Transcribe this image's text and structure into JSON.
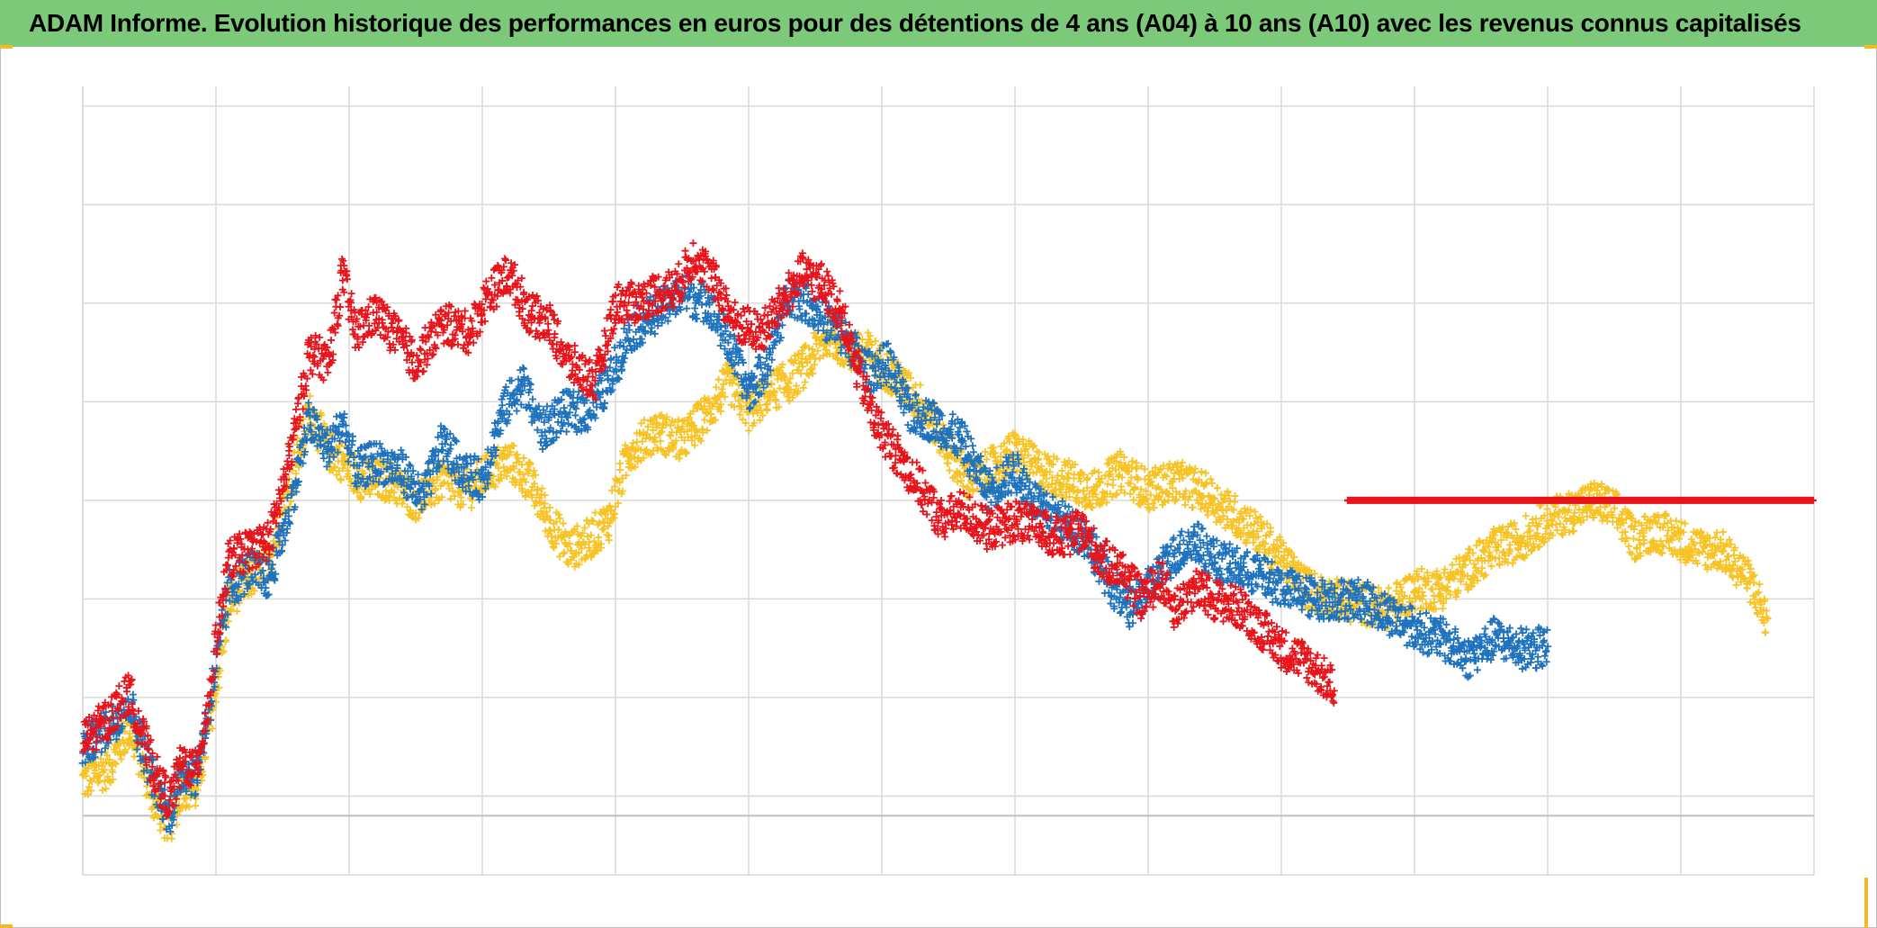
{
  "title": "ADAM Informe. Evolution historique des performances en euros pour des détentions de 4 ans (A04) à 10 ans (A10) avec les revenus connus capitalisés",
  "colors": {
    "header_bg": "#7dc97a",
    "grid": "#d9d9d9",
    "baseline": "#bfbfbf",
    "red": "#e8141b",
    "blue": "#1f73be",
    "yellow": "#f7c325"
  },
  "chart_data": {
    "type": "scatter",
    "title": "ADAM Informe. Evolution historique des performances en euros pour des détentions de 4 ans (A04) à 10 ans (A10) avec les revenus connus capitalisés",
    "xlabel": "",
    "ylabel": "",
    "xlim": [
      0,
      13
    ],
    "ylim": [
      -0.8,
      7.2
    ],
    "x_gridlines": [
      0,
      1,
      2,
      3,
      4,
      5,
      6,
      7,
      8,
      9,
      10,
      11,
      12,
      13
    ],
    "y_gridlines": [
      0,
      1,
      2,
      3,
      4,
      5,
      6,
      7
    ],
    "grid": true,
    "baseline_y": -0.2,
    "marker": "plus",
    "legend": "none",
    "series": [
      {
        "color": "red",
        "points": [
          [
            0,
            0.55
          ],
          [
            0.2,
            0.8
          ],
          [
            0.35,
            1.05
          ],
          [
            0.45,
            0.6
          ],
          [
            0.55,
            0.2
          ],
          [
            0.65,
            -0.05
          ],
          [
            0.75,
            0.35
          ],
          [
            0.85,
            0.25
          ],
          [
            0.95,
            1.0
          ],
          [
            1.0,
            1.6
          ],
          [
            1.1,
            2.4
          ],
          [
            1.25,
            2.5
          ],
          [
            1.4,
            2.6
          ],
          [
            1.55,
            3.4
          ],
          [
            1.7,
            4.5
          ],
          [
            1.85,
            4.4
          ],
          [
            1.95,
            5.3
          ],
          [
            2.05,
            4.7
          ],
          [
            2.2,
            4.9
          ],
          [
            2.4,
            4.6
          ],
          [
            2.5,
            4.4
          ],
          [
            2.7,
            4.8
          ],
          [
            2.9,
            4.7
          ],
          [
            3.05,
            5.1
          ],
          [
            3.2,
            5.3
          ],
          [
            3.35,
            4.9
          ],
          [
            3.5,
            4.8
          ],
          [
            3.65,
            4.4
          ],
          [
            3.85,
            4.2
          ],
          [
            4.0,
            5.0
          ],
          [
            4.15,
            5.0
          ],
          [
            4.3,
            5.1
          ],
          [
            4.45,
            5.15
          ],
          [
            4.6,
            5.5
          ],
          [
            4.75,
            5.2
          ],
          [
            4.9,
            4.8
          ],
          [
            5.1,
            4.7
          ],
          [
            5.25,
            5.0
          ],
          [
            5.4,
            5.3
          ],
          [
            5.55,
            5.2
          ],
          [
            5.7,
            4.9
          ],
          [
            5.8,
            4.4
          ],
          [
            5.95,
            3.8
          ],
          [
            6.1,
            3.5
          ],
          [
            6.25,
            3.2
          ],
          [
            6.45,
            2.8
          ],
          [
            6.6,
            2.9
          ],
          [
            6.8,
            2.7
          ],
          [
            7.0,
            2.8
          ],
          [
            7.2,
            2.7
          ],
          [
            7.35,
            2.6
          ],
          [
            7.5,
            2.7
          ],
          [
            7.65,
            2.4
          ],
          [
            7.8,
            2.3
          ],
          [
            7.95,
            2.0
          ],
          [
            8.1,
            2.2
          ],
          [
            8.2,
            1.9
          ],
          [
            8.35,
            2.1
          ],
          [
            8.5,
            2.0
          ],
          [
            8.7,
            1.9
          ],
          [
            8.85,
            1.7
          ],
          [
            9.0,
            1.5
          ],
          [
            9.2,
            1.35
          ],
          [
            9.4,
            1.1
          ]
        ]
      },
      {
        "color": "blue",
        "points": [
          [
            0,
            0.5
          ],
          [
            0.2,
            0.7
          ],
          [
            0.35,
            0.95
          ],
          [
            0.45,
            0.5
          ],
          [
            0.55,
            0.1
          ],
          [
            0.65,
            -0.2
          ],
          [
            0.75,
            0.25
          ],
          [
            0.85,
            0.2
          ],
          [
            0.95,
            0.9
          ],
          [
            1.0,
            1.3
          ],
          [
            1.1,
            2.1
          ],
          [
            1.25,
            2.3
          ],
          [
            1.4,
            2.2
          ],
          [
            1.55,
            2.9
          ],
          [
            1.7,
            3.8
          ],
          [
            1.85,
            3.5
          ],
          [
            1.95,
            3.8
          ],
          [
            2.05,
            3.3
          ],
          [
            2.2,
            3.4
          ],
          [
            2.4,
            3.3
          ],
          [
            2.55,
            3.0
          ],
          [
            2.7,
            3.6
          ],
          [
            2.85,
            3.3
          ],
          [
            3.0,
            3.2
          ],
          [
            3.15,
            3.9
          ],
          [
            3.3,
            4.2
          ],
          [
            3.45,
            3.7
          ],
          [
            3.6,
            3.9
          ],
          [
            3.8,
            3.9
          ],
          [
            3.95,
            4.2
          ],
          [
            4.1,
            4.7
          ],
          [
            4.3,
            4.9
          ],
          [
            4.5,
            5.1
          ],
          [
            4.7,
            5.0
          ],
          [
            4.85,
            4.6
          ],
          [
            5.0,
            4.1
          ],
          [
            5.15,
            4.4
          ],
          [
            5.3,
            5.1
          ],
          [
            5.45,
            5.0
          ],
          [
            5.6,
            4.8
          ],
          [
            5.75,
            4.6
          ],
          [
            5.9,
            4.3
          ],
          [
            6.05,
            4.4
          ],
          [
            6.2,
            3.9
          ],
          [
            6.4,
            3.8
          ],
          [
            6.6,
            3.6
          ],
          [
            6.8,
            3.1
          ],
          [
            7.0,
            3.3
          ],
          [
            7.2,
            2.9
          ],
          [
            7.35,
            2.8
          ],
          [
            7.55,
            2.6
          ],
          [
            7.7,
            2.2
          ],
          [
            7.85,
            1.9
          ],
          [
            8.0,
            2.1
          ],
          [
            8.15,
            2.4
          ],
          [
            8.35,
            2.6
          ],
          [
            8.5,
            2.4
          ],
          [
            8.7,
            2.3
          ],
          [
            8.9,
            2.2
          ],
          [
            9.05,
            2.1
          ],
          [
            9.25,
            2.0
          ],
          [
            9.45,
            2.0
          ],
          [
            9.6,
            2.0
          ],
          [
            9.8,
            1.85
          ],
          [
            10.0,
            1.7
          ],
          [
            10.2,
            1.6
          ],
          [
            10.4,
            1.4
          ],
          [
            10.6,
            1.6
          ],
          [
            10.8,
            1.5
          ],
          [
            11.0,
            1.5
          ]
        ]
      },
      {
        "color": "yellow",
        "points": [
          [
            0,
            0.15
          ],
          [
            0.2,
            0.3
          ],
          [
            0.35,
            0.7
          ],
          [
            0.45,
            0.3
          ],
          [
            0.55,
            -0.1
          ],
          [
            0.65,
            -0.3
          ],
          [
            0.75,
            0.1
          ],
          [
            0.85,
            0.05
          ],
          [
            0.95,
            0.7
          ],
          [
            1.0,
            1.1
          ],
          [
            1.1,
            2.0
          ],
          [
            1.25,
            2.2
          ],
          [
            1.4,
            2.4
          ],
          [
            1.55,
            3.1
          ],
          [
            1.7,
            3.9
          ],
          [
            1.85,
            3.5
          ],
          [
            1.95,
            3.4
          ],
          [
            2.1,
            3.2
          ],
          [
            2.3,
            3.2
          ],
          [
            2.5,
            3.0
          ],
          [
            2.7,
            3.2
          ],
          [
            2.9,
            3.1
          ],
          [
            3.05,
            3.3
          ],
          [
            3.2,
            3.4
          ],
          [
            3.35,
            3.2
          ],
          [
            3.5,
            2.8
          ],
          [
            3.65,
            2.5
          ],
          [
            3.8,
            2.6
          ],
          [
            3.95,
            2.8
          ],
          [
            4.1,
            3.5
          ],
          [
            4.3,
            3.7
          ],
          [
            4.5,
            3.6
          ],
          [
            4.7,
            3.9
          ],
          [
            4.85,
            4.2
          ],
          [
            5.0,
            3.9
          ],
          [
            5.15,
            4.1
          ],
          [
            5.3,
            4.2
          ],
          [
            5.45,
            4.4
          ],
          [
            5.6,
            4.7
          ],
          [
            5.75,
            4.5
          ],
          [
            5.9,
            4.5
          ],
          [
            6.05,
            4.3
          ],
          [
            6.2,
            4.1
          ],
          [
            6.35,
            3.9
          ],
          [
            6.5,
            3.5
          ],
          [
            6.65,
            3.2
          ],
          [
            6.8,
            3.3
          ],
          [
            7.0,
            3.5
          ],
          [
            7.2,
            3.3
          ],
          [
            7.4,
            3.2
          ],
          [
            7.6,
            3.1
          ],
          [
            7.8,
            3.3
          ],
          [
            8.0,
            3.1
          ],
          [
            8.2,
            3.2
          ],
          [
            8.4,
            3.1
          ],
          [
            8.6,
            2.9
          ],
          [
            8.8,
            2.7
          ],
          [
            9.0,
            2.4
          ],
          [
            9.2,
            2.1
          ],
          [
            9.4,
            2.0
          ],
          [
            9.6,
            1.95
          ],
          [
            9.8,
            1.9
          ],
          [
            10.0,
            2.1
          ],
          [
            10.2,
            2.1
          ],
          [
            10.4,
            2.3
          ],
          [
            10.6,
            2.5
          ],
          [
            10.8,
            2.6
          ],
          [
            11.0,
            2.8
          ],
          [
            11.2,
            2.9
          ],
          [
            11.35,
            3.0
          ],
          [
            11.5,
            2.9
          ],
          [
            11.65,
            2.6
          ],
          [
            11.8,
            2.7
          ],
          [
            12.0,
            2.6
          ],
          [
            12.15,
            2.5
          ],
          [
            12.3,
            2.5
          ],
          [
            12.45,
            2.3
          ],
          [
            12.55,
            2.1
          ],
          [
            12.65,
            1.75
          ]
        ]
      },
      {
        "color": "red",
        "points": [
          [
            9.5,
            3.0
          ],
          [
            13.0,
            3.0
          ]
        ]
      }
    ]
  }
}
